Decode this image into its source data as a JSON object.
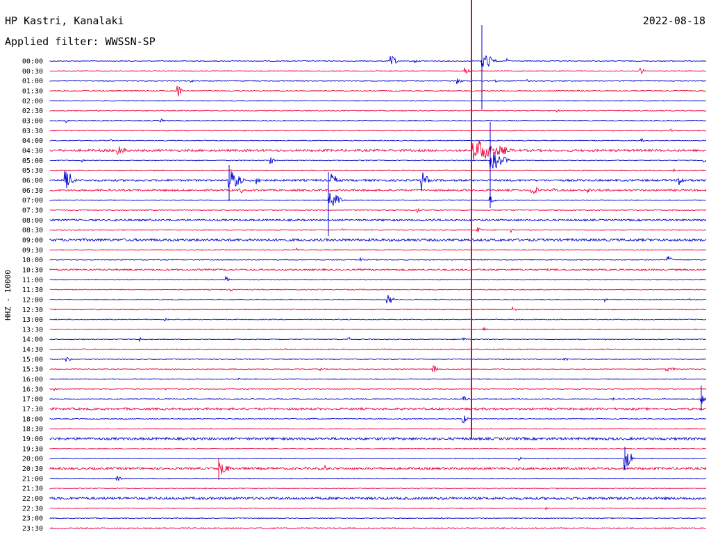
{
  "header": {
    "station": "HP Kastri, Kanalaki",
    "filter": "Applied filter: WWSSN-SP",
    "date": "2022-08-18"
  },
  "chart_data": {
    "type": "line",
    "ylabel": "HHZ - 10000",
    "rows": [
      "00:00",
      "00:30",
      "01:00",
      "01:30",
      "02:00",
      "02:30",
      "03:00",
      "03:30",
      "04:00",
      "04:30",
      "05:00",
      "05:30",
      "06:00",
      "06:30",
      "07:00",
      "07:30",
      "08:00",
      "08:30",
      "09:00",
      "09:30",
      "10:00",
      "10:30",
      "11:00",
      "11:30",
      "12:00",
      "12:30",
      "13:00",
      "13:30",
      "14:00",
      "14:30",
      "15:00",
      "15:30",
      "16:00",
      "16:30",
      "17:00",
      "17:30",
      "18:00",
      "18:30",
      "19:00",
      "19:30",
      "20:00",
      "20:30",
      "21:00",
      "21:30",
      "22:00",
      "22:30",
      "23:00",
      "23:30"
    ],
    "trace_colors": [
      "#0000cc",
      "#e8003c"
    ]
  }
}
